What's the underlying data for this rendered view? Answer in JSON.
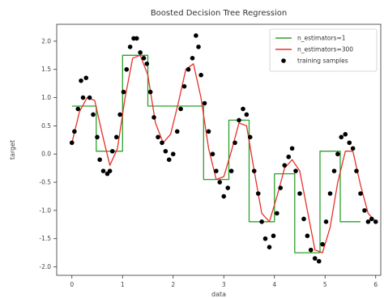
{
  "chart_data": {
    "type": "scatter",
    "title": "Boosted Decision Tree Regression",
    "xlabel": "data",
    "ylabel": "target",
    "xlim": [
      -0.3,
      6.1
    ],
    "ylim": [
      -2.15,
      2.3
    ],
    "xticks": [
      "0",
      "1",
      "2",
      "3",
      "4",
      "5",
      "6"
    ],
    "yticks": [
      "-2.0",
      "-1.5",
      "-1.0",
      "-0.5",
      "0.0",
      "0.5",
      "1.0",
      "1.5",
      "2.0"
    ],
    "grid": false,
    "legend_position": "top-right",
    "series": [
      {
        "name": "n_estimators=1",
        "type": "step",
        "color": "#2ca02c",
        "x": [
          0.0,
          0.48,
          0.48,
          1.0,
          1.0,
          1.5,
          1.5,
          2.6,
          2.6,
          3.1,
          3.1,
          3.5,
          3.5,
          4.0,
          4.0,
          4.4,
          4.4,
          4.9,
          4.9,
          5.3,
          5.3,
          5.7
        ],
        "y": [
          0.85,
          0.85,
          0.05,
          0.05,
          1.75,
          1.75,
          0.85,
          0.85,
          -0.45,
          -0.45,
          0.6,
          0.6,
          -1.2,
          -1.2,
          -0.35,
          -0.35,
          -1.75,
          -1.75,
          0.05,
          0.05,
          -1.2,
          -1.2
        ]
      },
      {
        "name": "n_estimators=300",
        "type": "line",
        "color": "#e8302a",
        "x": [
          0.0,
          0.15,
          0.3,
          0.45,
          0.6,
          0.75,
          0.9,
          1.05,
          1.2,
          1.35,
          1.5,
          1.65,
          1.8,
          1.95,
          2.1,
          2.25,
          2.4,
          2.55,
          2.7,
          2.85,
          3.0,
          3.15,
          3.3,
          3.45,
          3.6,
          3.75,
          3.9,
          4.05,
          4.2,
          4.35,
          4.5,
          4.65,
          4.8,
          4.95,
          5.1,
          5.25,
          5.4,
          5.55,
          5.7,
          5.85,
          6.0
        ],
        "y": [
          0.2,
          0.75,
          1.0,
          0.95,
          0.35,
          -0.2,
          0.1,
          1.0,
          1.7,
          1.75,
          1.4,
          0.55,
          0.2,
          0.35,
          0.9,
          1.5,
          1.6,
          1.0,
          0.1,
          -0.45,
          -0.4,
          0.05,
          0.55,
          0.5,
          -0.3,
          -1.05,
          -1.2,
          -0.75,
          -0.25,
          -0.1,
          -0.3,
          -1.0,
          -1.7,
          -1.75,
          -1.3,
          -0.5,
          0.05,
          0.05,
          -0.55,
          -1.05,
          -1.2
        ]
      },
      {
        "name": "training samples",
        "type": "scatter",
        "color": "#000000",
        "x": [
          0.0,
          0.05,
          0.12,
          0.18,
          0.22,
          0.28,
          0.35,
          0.42,
          0.5,
          0.55,
          0.62,
          0.7,
          0.75,
          0.8,
          0.88,
          0.95,
          1.02,
          1.08,
          1.15,
          1.22,
          1.28,
          1.35,
          1.42,
          1.48,
          1.55,
          1.62,
          1.7,
          1.78,
          1.85,
          1.92,
          2.0,
          2.08,
          2.15,
          2.22,
          2.3,
          2.38,
          2.45,
          2.5,
          2.55,
          2.62,
          2.7,
          2.78,
          2.85,
          2.92,
          3.0,
          3.08,
          3.15,
          3.22,
          3.3,
          3.38,
          3.45,
          3.52,
          3.6,
          3.68,
          3.75,
          3.82,
          3.9,
          3.98,
          4.05,
          4.12,
          4.2,
          4.28,
          4.35,
          4.42,
          4.5,
          4.58,
          4.65,
          4.72,
          4.8,
          4.88,
          4.95,
          5.02,
          5.1,
          5.18,
          5.25,
          5.32,
          5.4,
          5.48,
          5.55,
          5.62,
          5.7,
          5.78,
          5.85,
          5.92,
          6.0
        ],
        "y": [
          0.2,
          0.4,
          0.8,
          1.3,
          1.0,
          1.35,
          1.0,
          0.7,
          0.3,
          -0.1,
          -0.3,
          -0.35,
          -0.3,
          0.05,
          0.3,
          0.7,
          1.1,
          1.5,
          1.9,
          2.05,
          2.05,
          1.8,
          1.7,
          1.6,
          1.1,
          0.65,
          0.3,
          0.2,
          0.05,
          -0.1,
          0.0,
          0.4,
          0.8,
          1.2,
          1.5,
          1.7,
          2.1,
          1.9,
          1.4,
          0.9,
          0.4,
          0.0,
          -0.3,
          -0.5,
          -0.75,
          -0.6,
          -0.3,
          0.2,
          0.6,
          0.8,
          0.7,
          0.3,
          -0.3,
          -0.7,
          -1.2,
          -1.5,
          -1.65,
          -1.45,
          -1.05,
          -0.6,
          -0.2,
          -0.05,
          0.1,
          -0.3,
          -0.7,
          -1.15,
          -1.45,
          -1.7,
          -1.85,
          -1.9,
          -1.6,
          -1.2,
          -0.7,
          -0.3,
          0.0,
          0.3,
          0.35,
          0.2,
          0.1,
          -0.3,
          -0.7,
          -1.0,
          -1.2,
          -1.15,
          -1.2
        ]
      }
    ]
  }
}
